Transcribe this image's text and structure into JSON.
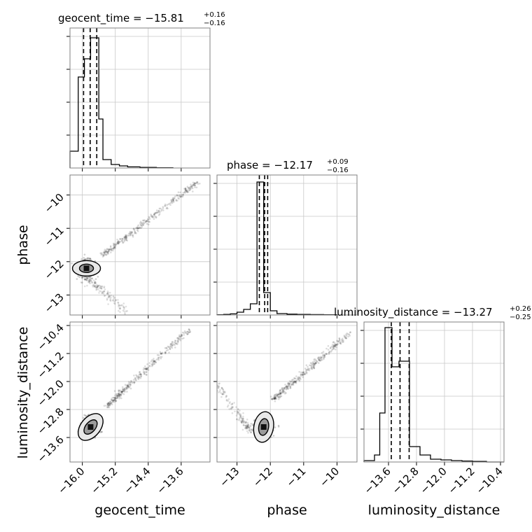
{
  "chart_data": {
    "type": "corner",
    "parameters": [
      {
        "name": "geocent_time",
        "title": {
          "prefix": "geocent_time = ",
          "median": "−15.81",
          "plus": "+0.16",
          "minus": "−0.16"
        },
        "range": [
          -16.3,
          -12.9
        ],
        "ticks": [
          -16.0,
          -15.2,
          -14.4,
          -13.6
        ],
        "tick_labels": [
          "−16.0",
          "−15.2",
          "−14.4",
          "−13.6"
        ],
        "quantiles": [
          -15.97,
          -15.81,
          -15.65
        ],
        "hist_bins": [
          -16.3,
          -16.1,
          -15.95,
          -15.8,
          -15.6,
          -15.5,
          -15.3,
          -15.1,
          -14.9,
          -14.6,
          -14.2,
          -13.8
        ],
        "hist_counts": [
          0.12,
          0.65,
          0.78,
          0.93,
          0.35,
          0.06,
          0.025,
          0.015,
          0.008,
          0.004,
          0.002,
          0.0
        ]
      },
      {
        "name": "phase",
        "title": {
          "prefix": "phase = ",
          "median": "−12.17",
          "plus": "+0.09",
          "minus": "−0.16"
        },
        "range": [
          -13.6,
          -9.4
        ],
        "ticks": [
          -13,
          -12,
          -11,
          -10
        ],
        "tick_labels": [
          "−13",
          "−12",
          "−11",
          "−10"
        ],
        "quantiles": [
          -12.33,
          -12.17,
          -12.08
        ],
        "hist_bins": [
          -13.6,
          -13.4,
          -13.2,
          -13.0,
          -12.8,
          -12.6,
          -12.4,
          -12.3,
          -12.2,
          -12.0,
          -11.8,
          -11.5,
          -11.2,
          -10.8,
          -10.4,
          -10.0
        ],
        "hist_counts": [
          0.002,
          0.004,
          0.008,
          0.02,
          0.04,
          0.08,
          0.95,
          0.95,
          0.16,
          0.03,
          0.01,
          0.006,
          0.004,
          0.003,
          0.002
        ]
      },
      {
        "name": "luminosity_distance",
        "title": {
          "prefix": "luminosity_distance = ",
          "median": "−13.27",
          "plus": "+0.26",
          "minus": "−0.25"
        },
        "range": [
          -14.3,
          -10.3
        ],
        "ticks": [
          -13.6,
          -12.8,
          -12.0,
          -11.2,
          -10.4
        ],
        "tick_labels": [
          "−13.6",
          "−12.8",
          "−12.0",
          "−11.2",
          "−10.4"
        ],
        "quantiles": [
          -13.52,
          -13.27,
          -13.01
        ],
        "hist_bins": [
          -14.3,
          -14.0,
          -13.85,
          -13.7,
          -13.5,
          -13.3,
          -13.0,
          -12.7,
          -12.4,
          -12.1,
          -11.8,
          -11.5,
          -11.2,
          -10.8,
          -10.3
        ],
        "hist_counts": [
          0.01,
          0.05,
          0.35,
          0.96,
          0.68,
          0.72,
          0.11,
          0.05,
          0.02,
          0.015,
          0.01,
          0.007,
          0.004,
          0.0
        ]
      }
    ],
    "pair_trends": [
      {
        "x": "geocent_time",
        "y": "phase",
        "cluster": [
          -15.9,
          -12.2
        ],
        "trend": [
          [
            -15.5,
            -11.8
          ],
          [
            -13.2,
            -9.6
          ]
        ],
        "tail": [
          [
            -15.9,
            -12.5
          ],
          [
            -14.9,
            -13.5
          ]
        ]
      },
      {
        "x": "geocent_time",
        "y": "luminosity_distance",
        "cluster": [
          -15.8,
          -13.3
        ],
        "trend": [
          [
            -15.4,
            -12.7
          ],
          [
            -13.4,
            -10.5
          ]
        ]
      },
      {
        "x": "phase",
        "y": "luminosity_distance",
        "cluster": [
          -12.2,
          -13.3
        ],
        "trend": [
          [
            -11.9,
            -12.5
          ],
          [
            -9.6,
            -10.6
          ]
        ],
        "tail": [
          [
            -12.6,
            -13.4
          ],
          [
            -13.6,
            -12.1
          ]
        ]
      }
    ],
    "grid": true
  }
}
